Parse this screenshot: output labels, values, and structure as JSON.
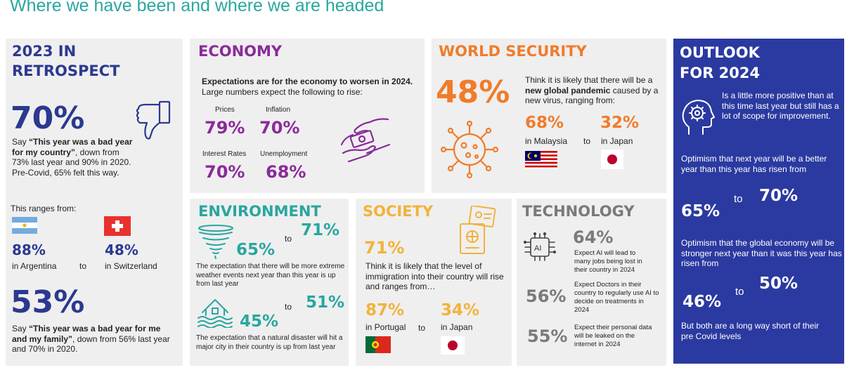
{
  "title": "Where we have been and where we are headed",
  "retro": {
    "heading1": "2023 IN",
    "heading2": "RETROSPECT",
    "pct1": "70%",
    "text1a": "Say ",
    "text1b": "“This year was a bad year for my country”",
    "text1c": ", down from 73% last year and 90% in 2020. Pre-Covid, 65% felt this way.",
    "ranges": "This ranges from:",
    "left_pct": "88%",
    "left_label": "in Argentina",
    "to": "to",
    "right_pct": "48%",
    "right_label": "in Switzerland",
    "pct2": "53%",
    "text2a": "Say ",
    "text2b": "“This year was a bad year for me and my family”",
    "text2c": ", down from 56% last year and 70% in 2020."
  },
  "economy": {
    "heading": "ECONOMY",
    "intro_bold": "Expectations are for the economy to worsen in 2024.",
    "intro_rest": " Large numbers expect the following to rise:",
    "items": [
      {
        "label": "Prices",
        "value": "79%"
      },
      {
        "label": "Inflation",
        "value": "70%"
      },
      {
        "label": "Interest Rates",
        "value": "70%"
      },
      {
        "label": "Unemployment",
        "value": "68%"
      }
    ]
  },
  "security": {
    "heading": "WORLD SECURITY",
    "pct": "48%",
    "text_a": "Think it is likely that there will be a ",
    "text_b": "new global pandemic",
    "text_c": " caused by a new virus, ranging from:",
    "left_pct": "68%",
    "left_label": "in Malaysia",
    "to": "to",
    "right_pct": "32%",
    "right_label": "in Japan"
  },
  "environment": {
    "heading": "ENVIRONMENT",
    "a_from": "65%",
    "to": "to",
    "a_to": "71%",
    "a_text": "The expectation that there will be more extreme weather events next year than this year is up from last year",
    "b_from": "45%",
    "b_to": "51%",
    "b_text": "The expectation that a natural disaster will hit a major city in their country is up from last year"
  },
  "society": {
    "heading": "SOCIETY",
    "pct": "71%",
    "text": "Think it is likely that the level of immigration into their country will rise and ranges from…",
    "left_pct": "87%",
    "left_label": "in Portugal",
    "to": "to",
    "right_pct": "34%",
    "right_label": "in Japan"
  },
  "technology": {
    "heading": "TECHNOLOGY",
    "items": [
      {
        "pct": "64%",
        "text": "Expect AI will lead to many jobs being lost in their country in 2024"
      },
      {
        "pct": "56%",
        "text": "Expect Doctors in their country to regularly use AI to decide on treatments in 2024"
      },
      {
        "pct": "55%",
        "text": "Expect their personal data will be leaked on the internet in 2024"
      }
    ],
    "chip_label": "AI"
  },
  "outlook": {
    "heading1": "OUTLOOK",
    "heading2": "FOR 2024",
    "intro": "Is a little more positive than at this time last year but still has a lot of scope for improvement.",
    "a_text": "Optimism that next year will be a better year than this year has risen from",
    "a_from": "65%",
    "to": "to",
    "a_to": "70%",
    "b_text": "Optimism that the global economy will be stronger next year than it was this year has risen from",
    "b_from": "46%",
    "b_to": "50%",
    "c_text": "But both are a long way short of their pre Covid levels"
  },
  "colors": {
    "navy": "#2b3990",
    "purple": "#8a2b9a",
    "orange": "#f07c2a",
    "teal": "#2aa6a0",
    "yellow": "#f3b23a",
    "grey": "#7a7a7a",
    "outlook_bg": "#2b3aa0",
    "panel_bg": "#efefef"
  },
  "icons": [
    "thumbs-down-icon",
    "argentina-flag-icon",
    "switzerland-flag-icon",
    "money-hands-icon",
    "virus-icon",
    "malaysia-flag-icon",
    "japan-flag-icon",
    "tornado-icon",
    "flood-house-icon",
    "passport-icon",
    "portugal-flag-icon",
    "ai-chip-icon",
    "head-gear-icon"
  ]
}
